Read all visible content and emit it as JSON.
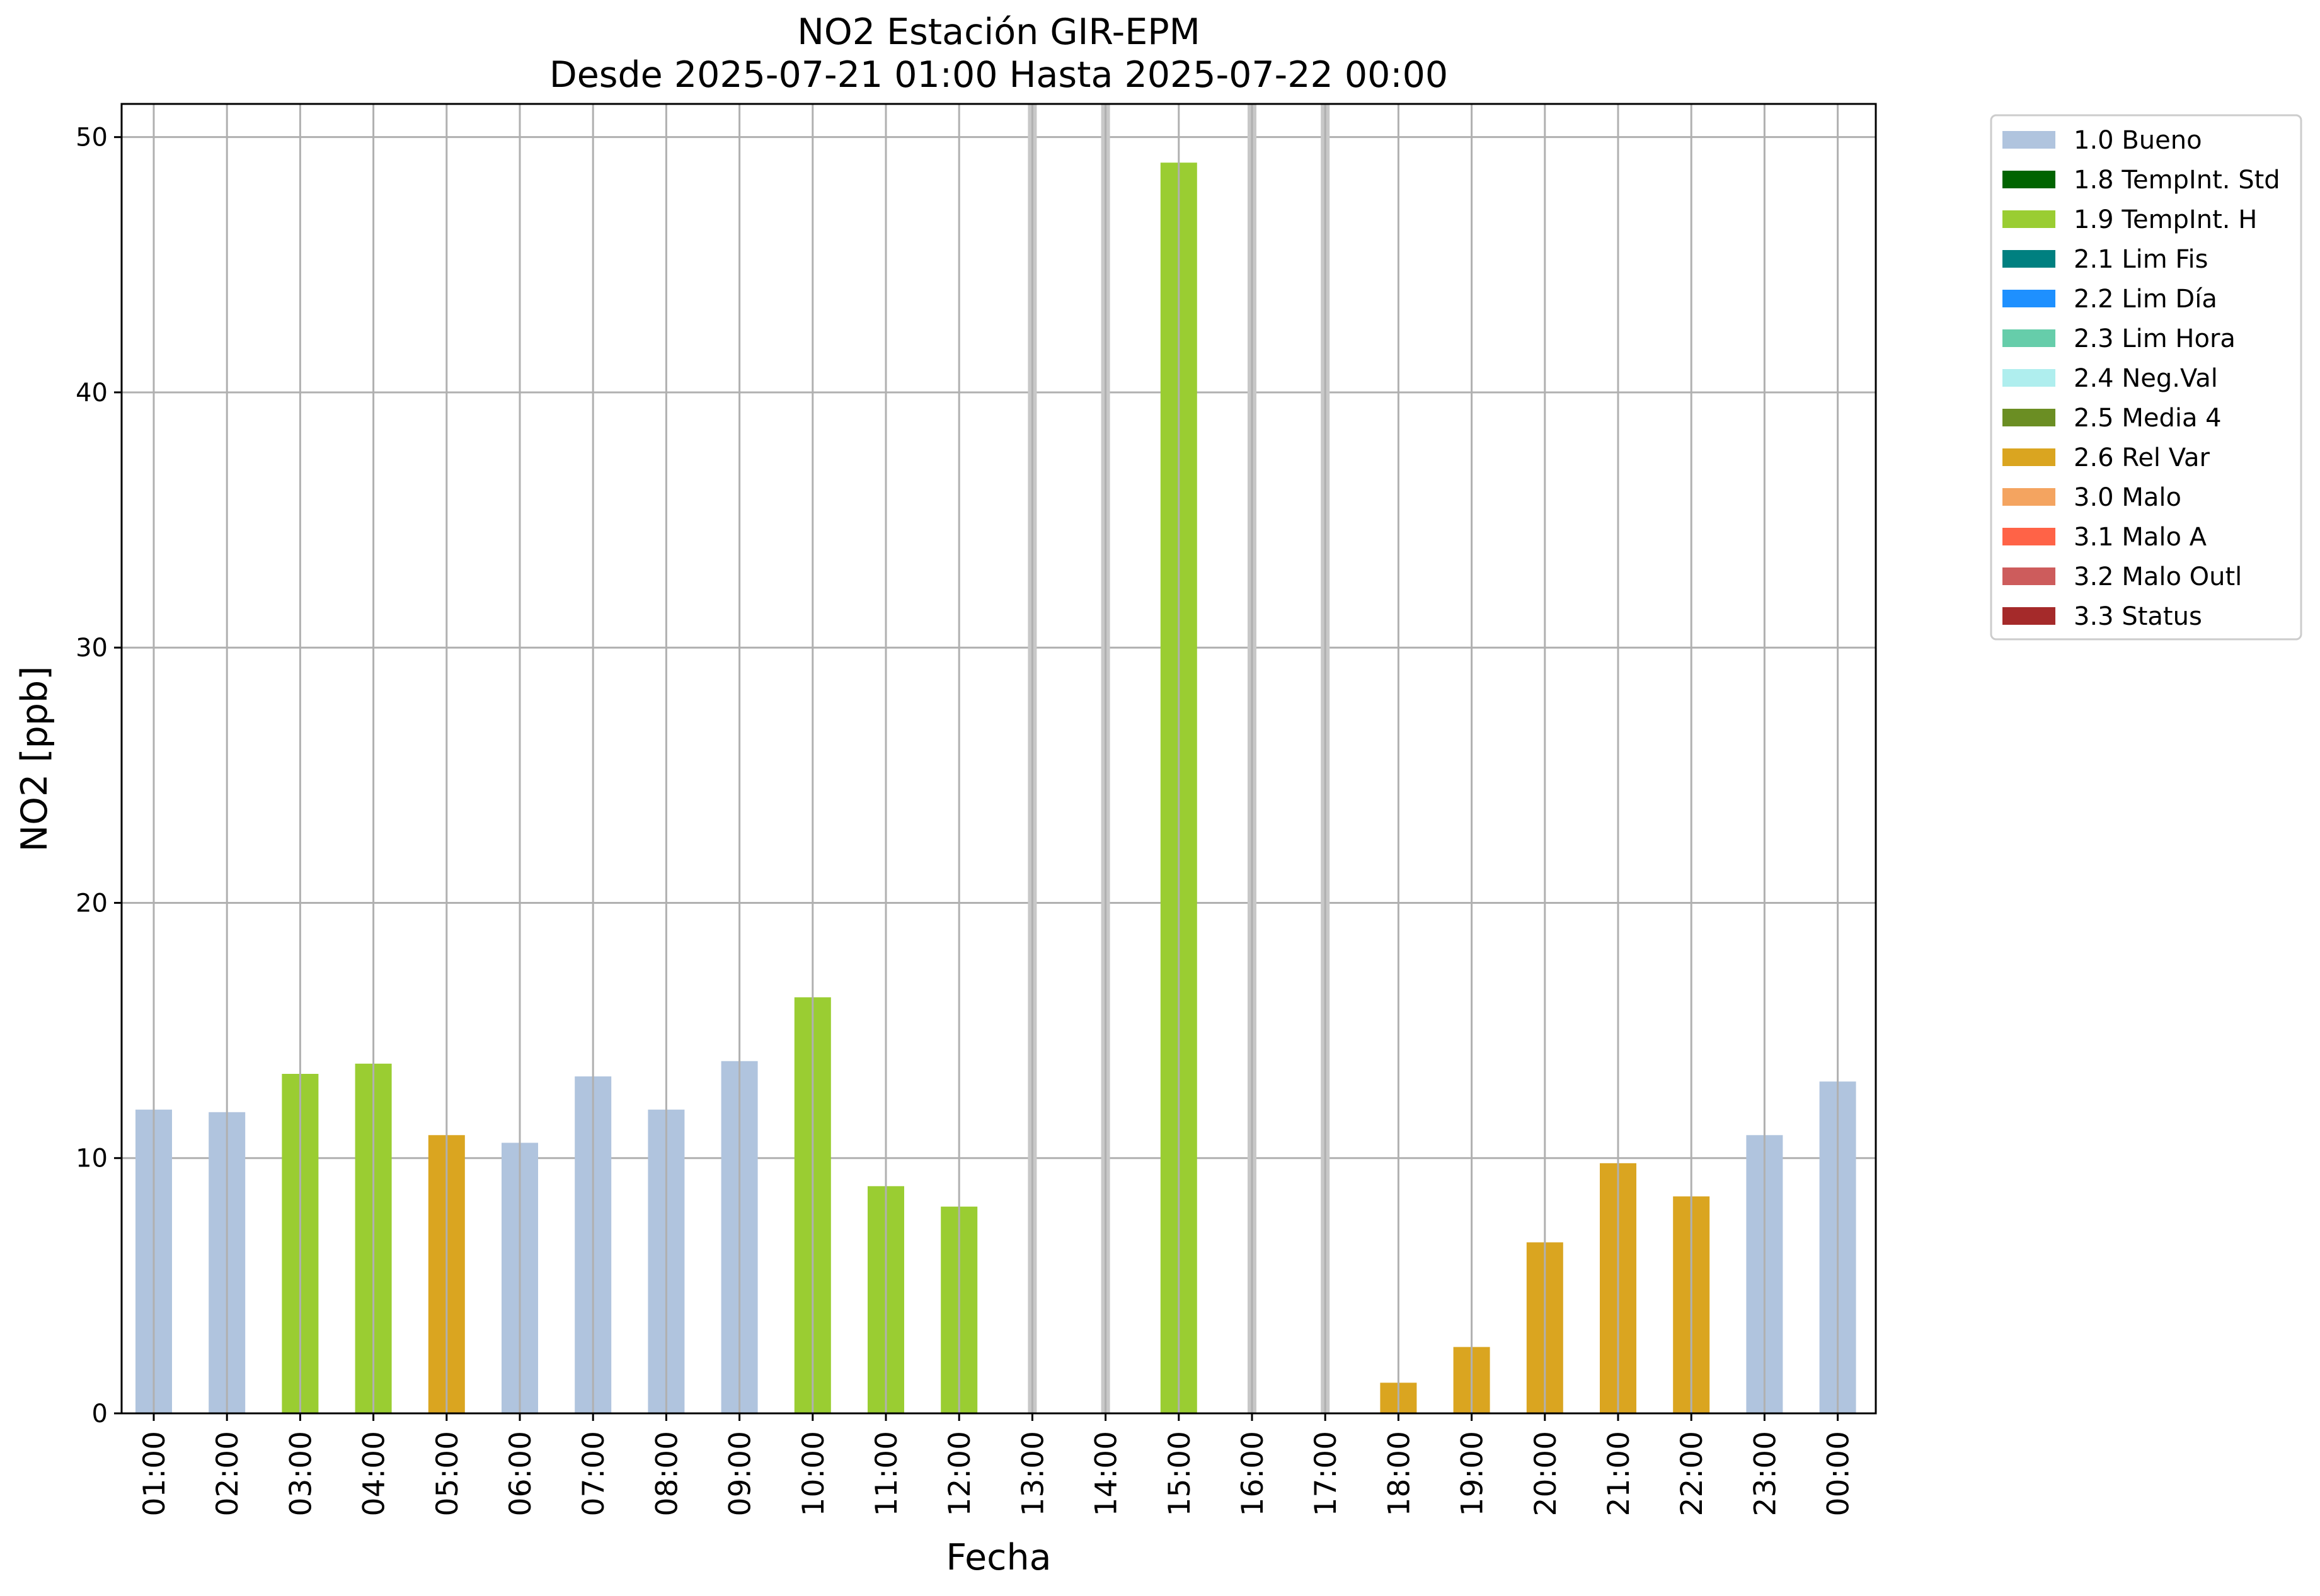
{
  "chart_data": {
    "type": "bar",
    "title": "NO2 Estación GIR-EPM",
    "subtitle": "Desde 2025-07-21 01:00 Hasta 2025-07-22 00:00",
    "xlabel": "Fecha",
    "ylabel": "NO2 [ppb]",
    "ylim": [
      0,
      51.3
    ],
    "yticks": [
      0,
      10,
      20,
      30,
      40,
      50
    ],
    "grid": true,
    "legend_position": "outside-top-right",
    "categories": [
      "01:00",
      "02:00",
      "03:00",
      "04:00",
      "05:00",
      "06:00",
      "07:00",
      "08:00",
      "09:00",
      "10:00",
      "11:00",
      "12:00",
      "13:00",
      "14:00",
      "15:00",
      "16:00",
      "17:00",
      "18:00",
      "19:00",
      "20:00",
      "21:00",
      "22:00",
      "23:00",
      "00:00"
    ],
    "values": [
      11.9,
      11.8,
      13.3,
      13.7,
      10.9,
      10.6,
      13.2,
      11.9,
      13.8,
      16.3,
      8.9,
      8.1,
      null,
      null,
      49.0,
      null,
      null,
      1.2,
      2.6,
      6.7,
      9.8,
      8.5,
      10.9,
      13.0
    ],
    "flags": [
      "1.0 Bueno",
      "1.0 Bueno",
      "1.9 TempInt. H",
      "1.9 TempInt. H",
      "2.6 Rel Var",
      "1.0 Bueno",
      "1.0 Bueno",
      "1.0 Bueno",
      "1.0 Bueno",
      "1.9 TempInt. H",
      "1.9 TempInt. H",
      "1.9 TempInt. H",
      null,
      null,
      "1.9 TempInt. H",
      null,
      null,
      "2.6 Rel Var",
      "2.6 Rel Var",
      "2.6 Rel Var",
      "2.6 Rel Var",
      "2.6 Rel Var",
      "1.0 Bueno",
      "1.0 Bueno"
    ],
    "missing_markers": [
      "13:00",
      "14:00",
      "16:00",
      "17:00"
    ],
    "legend": [
      {
        "label": "1.0 Bueno",
        "color": "#b0c4de"
      },
      {
        "label": "1.8 TempInt. Std",
        "color": "#006400"
      },
      {
        "label": "1.9 TempInt. H",
        "color": "#9acd32"
      },
      {
        "label": "2.1 Lim Fis",
        "color": "#008080"
      },
      {
        "label": "2.2 Lim Día",
        "color": "#1e90ff"
      },
      {
        "label": "2.3 Lim Hora",
        "color": "#66cdaa"
      },
      {
        "label": "2.4 Neg.Val",
        "color": "#afeeee"
      },
      {
        "label": "2.5 Media 4",
        "color": "#6b8e23"
      },
      {
        "label": "2.6 Rel Var",
        "color": "#daa520"
      },
      {
        "label": "3.0 Malo",
        "color": "#f4a460"
      },
      {
        "label": "3.1 Malo A",
        "color": "#ff6347"
      },
      {
        "label": "3.2 Malo Outl",
        "color": "#cd5c5c"
      },
      {
        "label": "3.3 Status",
        "color": "#a52a2a"
      }
    ],
    "colors": {
      "grid": "#b0b0b0",
      "missing_marker": "#c8c8c8"
    }
  }
}
